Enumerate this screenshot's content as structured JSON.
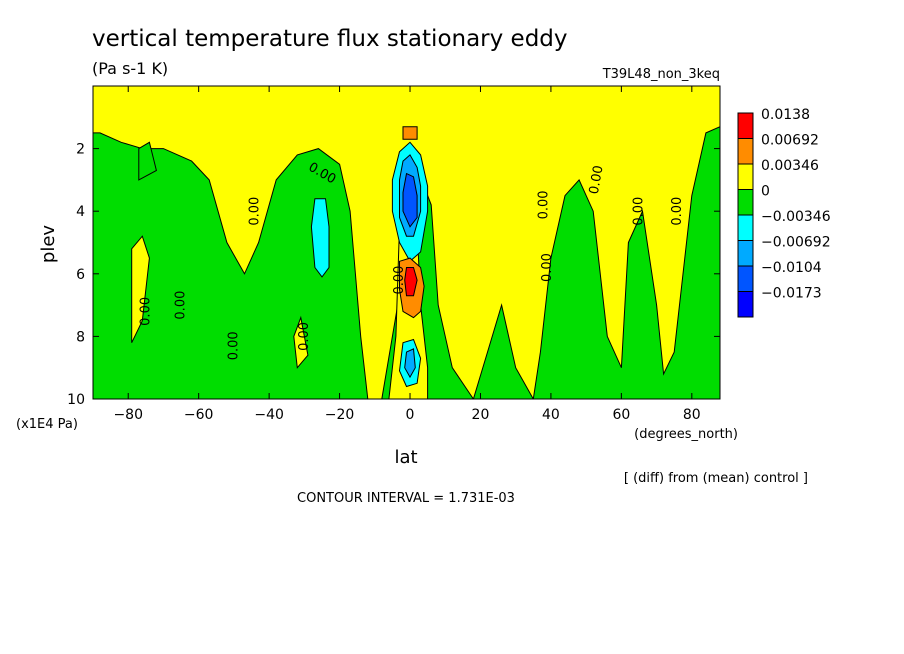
{
  "chart_data": {
    "type": "heatmap",
    "title": "vertical temperature flux stationary eddy",
    "units": "(Pa s-1 K)",
    "run": "T39L48_non_3keq",
    "xlabel": "lat",
    "x_units": "(degrees_north)",
    "ylabel": "plev",
    "y_units": "(x1E4 Pa)",
    "xlim": [
      -90,
      88
    ],
    "ylim": [
      10,
      0
    ],
    "x_ticks": [
      -80,
      -60,
      -40,
      -20,
      0,
      20,
      40,
      60,
      80
    ],
    "y_ticks": [
      2,
      4,
      6,
      8,
      10
    ],
    "note": "[ (diff) from (mean) control ]",
    "contour_interval": "CONTOUR INTERVAL = 1.731E-03",
    "contour_label": "0.00",
    "legend": [
      {
        "label": "0.0138",
        "color": "#ff0000"
      },
      {
        "label": "0.00692",
        "color": "#ff8c00"
      },
      {
        "label": "0.00346",
        "color": "#ffff00"
      },
      {
        "label": "0",
        "color": "#00dd00"
      },
      {
        "label": "−0.00346",
        "color": "#00ffff"
      },
      {
        "label": "−0.00692",
        "color": "#00aaff"
      },
      {
        "label": "−0.0104",
        "color": "#0055ff"
      },
      {
        "label": "−0.0173",
        "color": "#0000ff"
      }
    ],
    "regions": [
      {
        "name": "positive-band",
        "color": "#ffff00",
        "points": [
          [
            -90,
            0
          ],
          [
            88,
            0
          ],
          [
            88,
            1.3
          ],
          [
            84,
            1.5
          ],
          [
            80,
            3.5
          ],
          [
            75,
            8.5
          ],
          [
            72,
            9.2
          ],
          [
            70,
            7
          ],
          [
            66,
            4
          ],
          [
            62,
            5
          ],
          [
            60,
            9
          ],
          [
            56,
            8
          ],
          [
            52,
            4
          ],
          [
            48,
            3
          ],
          [
            44,
            3.5
          ],
          [
            40,
            5.5
          ],
          [
            37,
            8.5
          ],
          [
            35,
            10
          ],
          [
            30,
            9
          ],
          [
            26,
            7
          ],
          [
            22,
            8.5
          ],
          [
            18,
            10
          ],
          [
            12,
            9
          ],
          [
            8,
            7
          ],
          [
            6,
            3.8
          ],
          [
            4,
            3.2
          ],
          [
            2,
            3.2
          ],
          [
            -2,
            6
          ],
          [
            -5,
            8
          ],
          [
            -8,
            10
          ],
          [
            -12,
            10
          ],
          [
            -14,
            8
          ],
          [
            -17,
            4
          ],
          [
            -20,
            2.5
          ],
          [
            -26,
            2
          ],
          [
            -32,
            2.2
          ],
          [
            -38,
            3
          ],
          [
            -43,
            5
          ],
          [
            -47,
            6
          ],
          [
            -52,
            5
          ],
          [
            -57,
            3
          ],
          [
            -62,
            2.4
          ],
          [
            -70,
            2
          ],
          [
            -76,
            2
          ],
          [
            -82,
            1.8
          ],
          [
            -88,
            1.5
          ],
          [
            -90,
            1.5
          ]
        ]
      },
      {
        "name": "positive-streak",
        "color": "#ffff00",
        "points": [
          [
            -79,
            5.2
          ],
          [
            -76,
            4.8
          ],
          [
            -74,
            5.5
          ],
          [
            -76,
            7.5
          ],
          [
            -79,
            8.2
          ]
        ]
      },
      {
        "name": "negative-spot",
        "color": "#00dd00",
        "points": [
          [
            -77,
            2
          ],
          [
            -74,
            1.8
          ],
          [
            -72,
            2.7
          ],
          [
            -77,
            3
          ]
        ]
      },
      {
        "name": "positive-spot",
        "color": "#ffff00",
        "points": [
          [
            -33,
            8
          ],
          [
            -31,
            7.4
          ],
          [
            -29,
            8.6
          ],
          [
            -32,
            9
          ]
        ]
      },
      {
        "name": "positive-center",
        "color": "#ffff00",
        "points": [
          [
            -3,
            4.5
          ],
          [
            0,
            4.2
          ],
          [
            2,
            4.5
          ],
          [
            3,
            7
          ],
          [
            5,
            9
          ],
          [
            5,
            10
          ],
          [
            -6,
            10
          ],
          [
            -4,
            8
          ]
        ]
      },
      {
        "name": "cyan-core",
        "color": "#00ffff",
        "points": [
          [
            -27,
            3.6
          ],
          [
            -24,
            3.6
          ],
          [
            -23,
            4.5
          ],
          [
            -23,
            5.8
          ],
          [
            -25,
            6.1
          ],
          [
            -27,
            5.8
          ],
          [
            -28,
            4.5
          ]
        ]
      },
      {
        "name": "cyan-upper",
        "color": "#00ffff",
        "points": [
          [
            -3,
            2.1
          ],
          [
            0,
            1.8
          ],
          [
            3,
            2.2
          ],
          [
            5,
            3.2
          ],
          [
            5,
            4
          ],
          [
            3,
            5.3
          ],
          [
            0,
            5.6
          ],
          [
            -3,
            5
          ],
          [
            -5,
            4
          ],
          [
            -5,
            3
          ]
        ]
      },
      {
        "name": "blue-upper",
        "color": "#00aaff",
        "points": [
          [
            -2,
            2.4
          ],
          [
            0,
            2.2
          ],
          [
            2,
            2.6
          ],
          [
            3,
            3.2
          ],
          [
            3,
            4
          ],
          [
            1,
            4.8
          ],
          [
            -1,
            4.8
          ],
          [
            -3,
            4.2
          ],
          [
            -3,
            3
          ]
        ]
      },
      {
        "name": "deep-blue-upper",
        "color": "#0055ff",
        "points": [
          [
            -1,
            2.8
          ],
          [
            1,
            2.9
          ],
          [
            2,
            3.5
          ],
          [
            2,
            4.2
          ],
          [
            0,
            4.5
          ],
          [
            -2,
            4
          ],
          [
            -2,
            3.4
          ]
        ]
      },
      {
        "name": "cyan-lower",
        "color": "#00ffff",
        "points": [
          [
            -2,
            8.2
          ],
          [
            1,
            8.1
          ],
          [
            3,
            8.7
          ],
          [
            2,
            9.5
          ],
          [
            -1,
            9.6
          ],
          [
            -3,
            9.1
          ]
        ]
      },
      {
        "name": "blue-lower",
        "color": "#00aaff",
        "points": [
          [
            -1,
            8.5
          ],
          [
            1,
            8.4
          ],
          [
            1.5,
            9
          ],
          [
            0,
            9.3
          ],
          [
            -1.5,
            9
          ]
        ]
      },
      {
        "name": "orange-lower",
        "color": "#ff8c00",
        "points": [
          [
            -3,
            5.6
          ],
          [
            0,
            5.5
          ],
          [
            3,
            5.8
          ],
          [
            4,
            6.4
          ],
          [
            3,
            7.2
          ],
          [
            1,
            7.4
          ],
          [
            -2,
            7.2
          ],
          [
            -3,
            6.5
          ]
        ]
      },
      {
        "name": "red-core",
        "color": "#ff0000",
        "points": [
          [
            -1,
            5.8
          ],
          [
            1,
            5.8
          ],
          [
            2,
            6.2
          ],
          [
            1,
            6.7
          ],
          [
            -1,
            6.7
          ],
          [
            -1.5,
            6.2
          ]
        ]
      },
      {
        "name": "orange-top",
        "color": "#ff8c00",
        "points": [
          [
            -2,
            1.3
          ],
          [
            2,
            1.3
          ],
          [
            2,
            1.7
          ],
          [
            -2,
            1.7
          ]
        ]
      }
    ],
    "contour_label_positions": [
      {
        "lat": -75,
        "p": 7.2,
        "rot": -90
      },
      {
        "lat": -65,
        "p": 7.0,
        "rot": -90
      },
      {
        "lat": -50,
        "p": 8.3,
        "rot": -90
      },
      {
        "lat": -44,
        "p": 4.0,
        "rot": -90
      },
      {
        "lat": -30,
        "p": 8.0,
        "rot": -90
      },
      {
        "lat": -25,
        "p": 2.8,
        "rot": 30
      },
      {
        "lat": -3,
        "p": 6.2,
        "rot": -90
      },
      {
        "lat": 39,
        "p": 5.8,
        "rot": -90
      },
      {
        "lat": 38,
        "p": 3.8,
        "rot": -90
      },
      {
        "lat": 53,
        "p": 3.0,
        "rot": -80
      },
      {
        "lat": 65,
        "p": 4.0,
        "rot": -90
      },
      {
        "lat": 76,
        "p": 4.0,
        "rot": -90
      }
    ]
  }
}
